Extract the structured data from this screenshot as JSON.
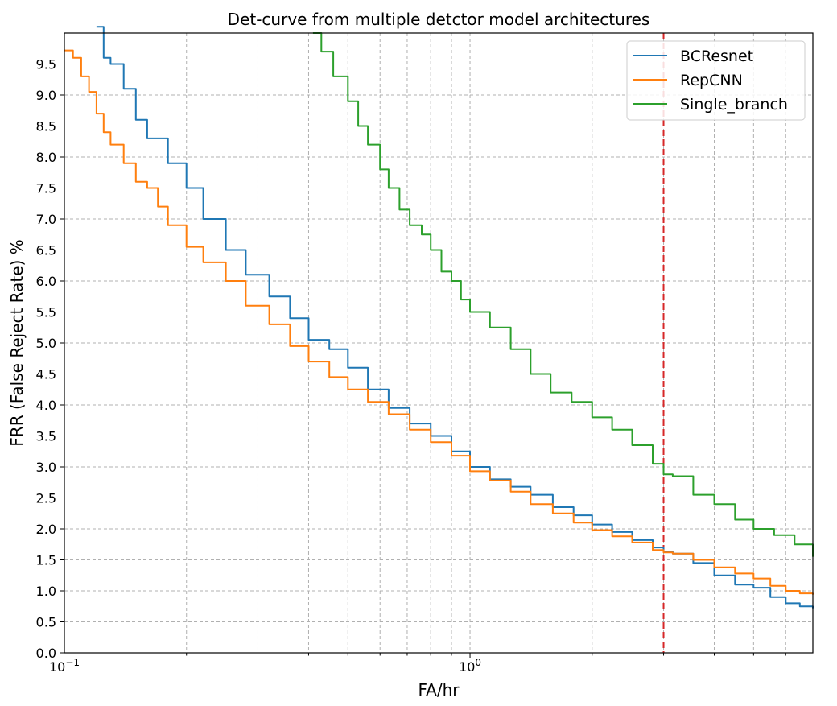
{
  "chart_data": {
    "type": "line",
    "title": "Det-curve from multiple detctor model architectures",
    "xlabel": "FA/hr",
    "ylabel": "FRR (False Reject Rate) %",
    "xscale": "log",
    "xlim": [
      0.1,
      7.0
    ],
    "ylim": [
      0.0,
      10.0
    ],
    "x_tick_labels": [
      {
        "x": 0.1,
        "base": "10",
        "exp": "−1"
      },
      {
        "x": 1.0,
        "base": "10",
        "exp": "0"
      }
    ],
    "y_ticks": [
      0.0,
      0.5,
      1.0,
      1.5,
      2.0,
      2.5,
      3.0,
      3.5,
      4.0,
      4.5,
      5.0,
      5.5,
      6.0,
      6.5,
      7.0,
      7.5,
      8.0,
      8.5,
      9.0,
      9.5
    ],
    "y_tick_labels": [
      "0.0",
      "0.5",
      "1.0",
      "1.5",
      "2.0",
      "2.5",
      "3.0",
      "3.5",
      "4.0",
      "4.5",
      "5.0",
      "5.5",
      "6.0",
      "6.5",
      "7.0",
      "7.5",
      "8.0",
      "8.5",
      "9.0",
      "9.5"
    ],
    "grid": true,
    "legend_position": "top-right",
    "threshold_line": {
      "x": 3.0,
      "color": "#d62728",
      "style": "dashed"
    },
    "series": [
      {
        "name": "BCResnet",
        "color": "#1f77b4",
        "points": [
          [
            0.12,
            10.1
          ],
          [
            0.125,
            9.6
          ],
          [
            0.13,
            9.5
          ],
          [
            0.14,
            9.1
          ],
          [
            0.15,
            8.6
          ],
          [
            0.16,
            8.3
          ],
          [
            0.18,
            7.9
          ],
          [
            0.2,
            7.5
          ],
          [
            0.22,
            7.0
          ],
          [
            0.25,
            6.5
          ],
          [
            0.28,
            6.1
          ],
          [
            0.32,
            5.75
          ],
          [
            0.36,
            5.4
          ],
          [
            0.4,
            5.05
          ],
          [
            0.45,
            4.9
          ],
          [
            0.5,
            4.6
          ],
          [
            0.56,
            4.25
          ],
          [
            0.63,
            3.95
          ],
          [
            0.71,
            3.7
          ],
          [
            0.8,
            3.5
          ],
          [
            0.9,
            3.25
          ],
          [
            1.0,
            3.0
          ],
          [
            1.12,
            2.8
          ],
          [
            1.26,
            2.68
          ],
          [
            1.41,
            2.55
          ],
          [
            1.6,
            2.35
          ],
          [
            1.8,
            2.22
          ],
          [
            2.0,
            2.07
          ],
          [
            2.24,
            1.95
          ],
          [
            2.51,
            1.82
          ],
          [
            2.82,
            1.7
          ],
          [
            3.0,
            1.63
          ],
          [
            3.16,
            1.6
          ],
          [
            3.55,
            1.45
          ],
          [
            4.0,
            1.25
          ],
          [
            4.5,
            1.1
          ],
          [
            5.0,
            1.05
          ],
          [
            5.5,
            0.9
          ],
          [
            6.0,
            0.8
          ],
          [
            6.5,
            0.75
          ],
          [
            7.0,
            0.72
          ]
        ]
      },
      {
        "name": "RepCNN",
        "color": "#ff7f0e",
        "points": [
          [
            0.1,
            9.72
          ],
          [
            0.105,
            9.6
          ],
          [
            0.11,
            9.3
          ],
          [
            0.115,
            9.05
          ],
          [
            0.12,
            8.7
          ],
          [
            0.125,
            8.4
          ],
          [
            0.13,
            8.2
          ],
          [
            0.14,
            7.9
          ],
          [
            0.15,
            7.6
          ],
          [
            0.16,
            7.5
          ],
          [
            0.17,
            7.2
          ],
          [
            0.18,
            6.9
          ],
          [
            0.2,
            6.55
          ],
          [
            0.22,
            6.3
          ],
          [
            0.25,
            6.0
          ],
          [
            0.28,
            5.6
          ],
          [
            0.32,
            5.3
          ],
          [
            0.36,
            4.95
          ],
          [
            0.4,
            4.7
          ],
          [
            0.45,
            4.45
          ],
          [
            0.5,
            4.25
          ],
          [
            0.56,
            4.05
          ],
          [
            0.63,
            3.85
          ],
          [
            0.71,
            3.6
          ],
          [
            0.8,
            3.4
          ],
          [
            0.9,
            3.18
          ],
          [
            1.0,
            2.93
          ],
          [
            1.12,
            2.78
          ],
          [
            1.26,
            2.6
          ],
          [
            1.41,
            2.4
          ],
          [
            1.6,
            2.25
          ],
          [
            1.8,
            2.1
          ],
          [
            2.0,
            1.98
          ],
          [
            2.24,
            1.88
          ],
          [
            2.51,
            1.78
          ],
          [
            2.82,
            1.66
          ],
          [
            3.0,
            1.62
          ],
          [
            3.16,
            1.6
          ],
          [
            3.55,
            1.5
          ],
          [
            4.0,
            1.38
          ],
          [
            4.5,
            1.28
          ],
          [
            5.0,
            1.2
          ],
          [
            5.5,
            1.08
          ],
          [
            6.0,
            1.0
          ],
          [
            6.5,
            0.96
          ],
          [
            7.0,
            0.94
          ]
        ]
      },
      {
        "name": "Single_branch",
        "color": "#2ca02c",
        "points": [
          [
            0.41,
            10.0
          ],
          [
            0.43,
            9.7
          ],
          [
            0.46,
            9.3
          ],
          [
            0.5,
            8.9
          ],
          [
            0.53,
            8.5
          ],
          [
            0.56,
            8.2
          ],
          [
            0.6,
            7.8
          ],
          [
            0.63,
            7.5
          ],
          [
            0.67,
            7.15
          ],
          [
            0.71,
            6.9
          ],
          [
            0.76,
            6.75
          ],
          [
            0.8,
            6.5
          ],
          [
            0.85,
            6.15
          ],
          [
            0.9,
            6.0
          ],
          [
            0.95,
            5.7
          ],
          [
            1.0,
            5.5
          ],
          [
            1.12,
            5.25
          ],
          [
            1.26,
            4.9
          ],
          [
            1.41,
            4.5
          ],
          [
            1.58,
            4.2
          ],
          [
            1.78,
            4.05
          ],
          [
            2.0,
            3.8
          ],
          [
            2.24,
            3.6
          ],
          [
            2.51,
            3.35
          ],
          [
            2.82,
            3.05
          ],
          [
            3.0,
            2.88
          ],
          [
            3.16,
            2.85
          ],
          [
            3.55,
            2.55
          ],
          [
            4.0,
            2.4
          ],
          [
            4.5,
            2.15
          ],
          [
            5.0,
            2.0
          ],
          [
            5.62,
            1.9
          ],
          [
            6.31,
            1.75
          ],
          [
            7.0,
            1.55
          ]
        ]
      }
    ]
  }
}
